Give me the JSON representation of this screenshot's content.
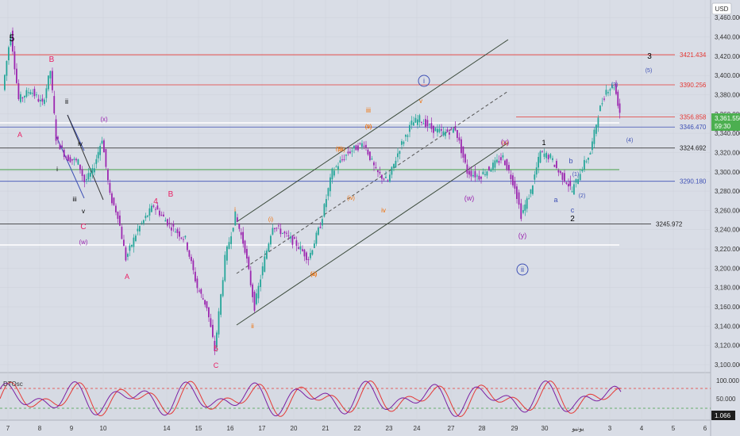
{
  "currency": "USD",
  "current_price": "3,361.550",
  "countdown": "59:30",
  "oscillator": {
    "name": "DTOsc",
    "value": "1.066",
    "ticks": [
      "100.000",
      "50.000",
      "0.000"
    ]
  },
  "colors": {
    "up": "#26a69a",
    "down": "#9c27b0",
    "red": "#e53935",
    "blue": "#3f51b5",
    "orange": "#ef6c00",
    "green": "#43a047",
    "accent": "#4caf50"
  },
  "chart_data": {
    "type": "candlestick",
    "ylim": [
      3100,
      3470
    ],
    "y_ticks": [
      "3,460.000",
      "3,440.000",
      "3,420.000",
      "3,400.000",
      "3,380.000",
      "3,360.000",
      "3,340.000",
      "3,320.000",
      "3,300.000",
      "3,280.000",
      "3,260.000",
      "3,240.000",
      "3,220.000",
      "3,200.000",
      "3,180.000",
      "3,160.000",
      "3,140.000",
      "3,120.000",
      "3,100.000"
    ],
    "x_ticks": [
      "7",
      "8",
      "9",
      "10",
      "14",
      "15",
      "16",
      "17",
      "20",
      "21",
      "22",
      "23",
      "24",
      "27",
      "28",
      "29",
      "30",
      "يونيو",
      "3",
      "4",
      "5",
      "6"
    ],
    "price_levels": [
      {
        "value": 3421.434,
        "label": "3421.434",
        "color": "#e53935"
      },
      {
        "value": 3390.256,
        "label": "3390.256",
        "color": "#e53935"
      },
      {
        "value": 3356.858,
        "label": "3356.858",
        "color": "#e53935"
      },
      {
        "value": 3346.47,
        "label": "3346.470",
        "color": "#3f51b5"
      },
      {
        "value": 3324.692,
        "label": "3324.692",
        "color": "#222222"
      },
      {
        "value": 3290.18,
        "label": "3290.180",
        "color": "#3f51b5"
      },
      {
        "value": 3245.972,
        "label": "3245.972",
        "color": "#222222"
      }
    ],
    "wave_labels": [
      {
        "text": "5",
        "color": "#000000"
      },
      {
        "text": "B",
        "color": "#e91e63"
      },
      {
        "text": "ii",
        "color": "#000000"
      },
      {
        "text": "(x)",
        "color": "#9c27b0"
      },
      {
        "text": "A",
        "color": "#e91e63"
      },
      {
        "text": "iv",
        "color": "#000000"
      },
      {
        "text": "i",
        "color": "#000000"
      },
      {
        "text": "iii",
        "color": "#000000"
      },
      {
        "text": "v",
        "color": "#000000"
      },
      {
        "text": "C",
        "color": "#e91e63"
      },
      {
        "text": "(w)",
        "color": "#9c27b0"
      },
      {
        "text": "A",
        "color": "#e91e63"
      },
      {
        "text": "4",
        "color": "#e91e63"
      },
      {
        "text": "B",
        "color": "#e91e63"
      },
      {
        "text": "5",
        "color": "#e91e63"
      },
      {
        "text": "C",
        "color": "#e91e63"
      },
      {
        "text": "i",
        "color": "#ef6c00"
      },
      {
        "text": "ii",
        "color": "#ef6c00"
      },
      {
        "text": "(i)",
        "color": "#ef6c00"
      },
      {
        "text": "(ii)",
        "color": "#ef6c00"
      },
      {
        "text": "(iii)",
        "color": "#ef6c00"
      },
      {
        "text": "(iv)",
        "color": "#ef6c00"
      },
      {
        "text": "(v)",
        "color": "#ef6c00"
      },
      {
        "text": "(x)",
        "color": "#ef6c00"
      },
      {
        "text": "(3)",
        "color": "#ef6c00"
      },
      {
        "text": "(5)",
        "color": "#ef6c00"
      },
      {
        "text": "(a)",
        "color": "#ef6c00"
      },
      {
        "text": "iii",
        "color": "#ef6c00"
      },
      {
        "text": "iv",
        "color": "#ef6c00"
      },
      {
        "text": "v",
        "color": "#ef6c00"
      },
      {
        "text": "i",
        "color": "#3f51b5"
      },
      {
        "text": "ii",
        "color": "#3f51b5"
      },
      {
        "text": "(w)",
        "color": "#9c27b0"
      },
      {
        "text": "(x)",
        "color": "#9c27b0"
      },
      {
        "text": "(y)",
        "color": "#9c27b0"
      },
      {
        "text": "1",
        "color": "#000000"
      },
      {
        "text": "2",
        "color": "#000000"
      },
      {
        "text": "a",
        "color": "#3f51b5"
      },
      {
        "text": "b",
        "color": "#3f51b5"
      },
      {
        "text": "c",
        "color": "#3f51b5"
      },
      {
        "text": "(1)",
        "color": "#3f51b5"
      },
      {
        "text": "(2)",
        "color": "#3f51b5"
      },
      {
        "text": "(3)",
        "color": "#3f51b5"
      },
      {
        "text": "(4)",
        "color": "#3f51b5"
      },
      {
        "text": "(5)",
        "color": "#3f51b5"
      },
      {
        "text": "3",
        "color": "#000000"
      }
    ]
  }
}
